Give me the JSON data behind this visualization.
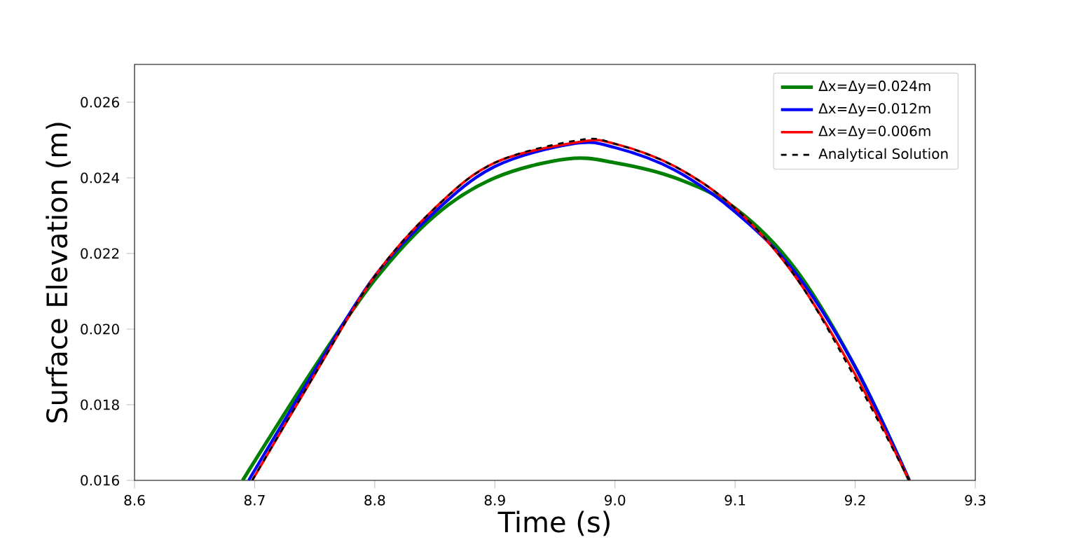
{
  "chart_data": {
    "type": "line",
    "xlabel": "Time (s)",
    "ylabel": "Surface Elevation (m)",
    "xlim": [
      8.6,
      9.3
    ],
    "ylim": [
      0.016,
      0.027
    ],
    "xticks": [
      {
        "value": 8.6,
        "label": "8.6"
      },
      {
        "value": 8.7,
        "label": "8.7"
      },
      {
        "value": 8.8,
        "label": "8.8"
      },
      {
        "value": 8.9,
        "label": "8.9"
      },
      {
        "value": 9.0,
        "label": "9.0"
      },
      {
        "value": 9.1,
        "label": "9.1"
      },
      {
        "value": 9.2,
        "label": "9.2"
      },
      {
        "value": 9.3,
        "label": "9.3"
      }
    ],
    "yticks": [
      {
        "value": 0.016,
        "label": "0.016"
      },
      {
        "value": 0.018,
        "label": "0.018"
      },
      {
        "value": 0.02,
        "label": "0.020"
      },
      {
        "value": 0.022,
        "label": "0.022"
      },
      {
        "value": 0.024,
        "label": "0.024"
      },
      {
        "value": 0.026,
        "label": "0.026"
      }
    ],
    "legend": "top right",
    "grid": false,
    "series": [
      {
        "name": "Δx=Δy=0.024m",
        "color": "#008000",
        "line_style": "solid",
        "x": [
          8.69,
          8.75,
          8.8,
          8.85,
          8.9,
          8.96,
          9.0,
          9.05,
          9.1,
          9.15,
          9.2,
          9.245
        ],
        "values": [
          0.016,
          0.019,
          0.0213,
          0.023,
          0.024,
          0.0245,
          0.0244,
          0.024,
          0.0232,
          0.0216,
          0.019,
          0.016
        ]
      },
      {
        "name": "Δx=Δy=0.012m",
        "color": "#0000ff",
        "line_style": "solid",
        "x": [
          8.695,
          8.75,
          8.8,
          8.85,
          8.9,
          8.965,
          9.0,
          9.05,
          9.1,
          9.15,
          9.2,
          9.245
        ],
        "values": [
          0.016,
          0.0189,
          0.0214,
          0.0231,
          0.0243,
          0.0249,
          0.0248,
          0.0242,
          0.0231,
          0.0215,
          0.019,
          0.016
        ]
      },
      {
        "name": "Δx=Δy=0.006m",
        "color": "#ff0000",
        "line_style": "solid",
        "x": [
          8.698,
          8.75,
          8.8,
          8.85,
          8.9,
          8.97,
          9.0,
          9.05,
          9.1,
          9.15,
          9.2,
          9.245
        ],
        "values": [
          0.016,
          0.0188,
          0.0214,
          0.0232,
          0.0244,
          0.02495,
          0.0249,
          0.0243,
          0.0232,
          0.0214,
          0.0188,
          0.016
        ]
      },
      {
        "name": "Analytical Solution",
        "color": "#000000",
        "line_style": "dashed",
        "x": [
          8.698,
          8.75,
          8.8,
          8.85,
          8.9,
          8.97,
          9.0,
          9.05,
          9.1,
          9.15,
          9.2,
          9.245
        ],
        "values": [
          0.016,
          0.0188,
          0.0214,
          0.0232,
          0.0244,
          0.025,
          0.0249,
          0.0243,
          0.0232,
          0.0214,
          0.0187,
          0.016
        ]
      }
    ]
  }
}
